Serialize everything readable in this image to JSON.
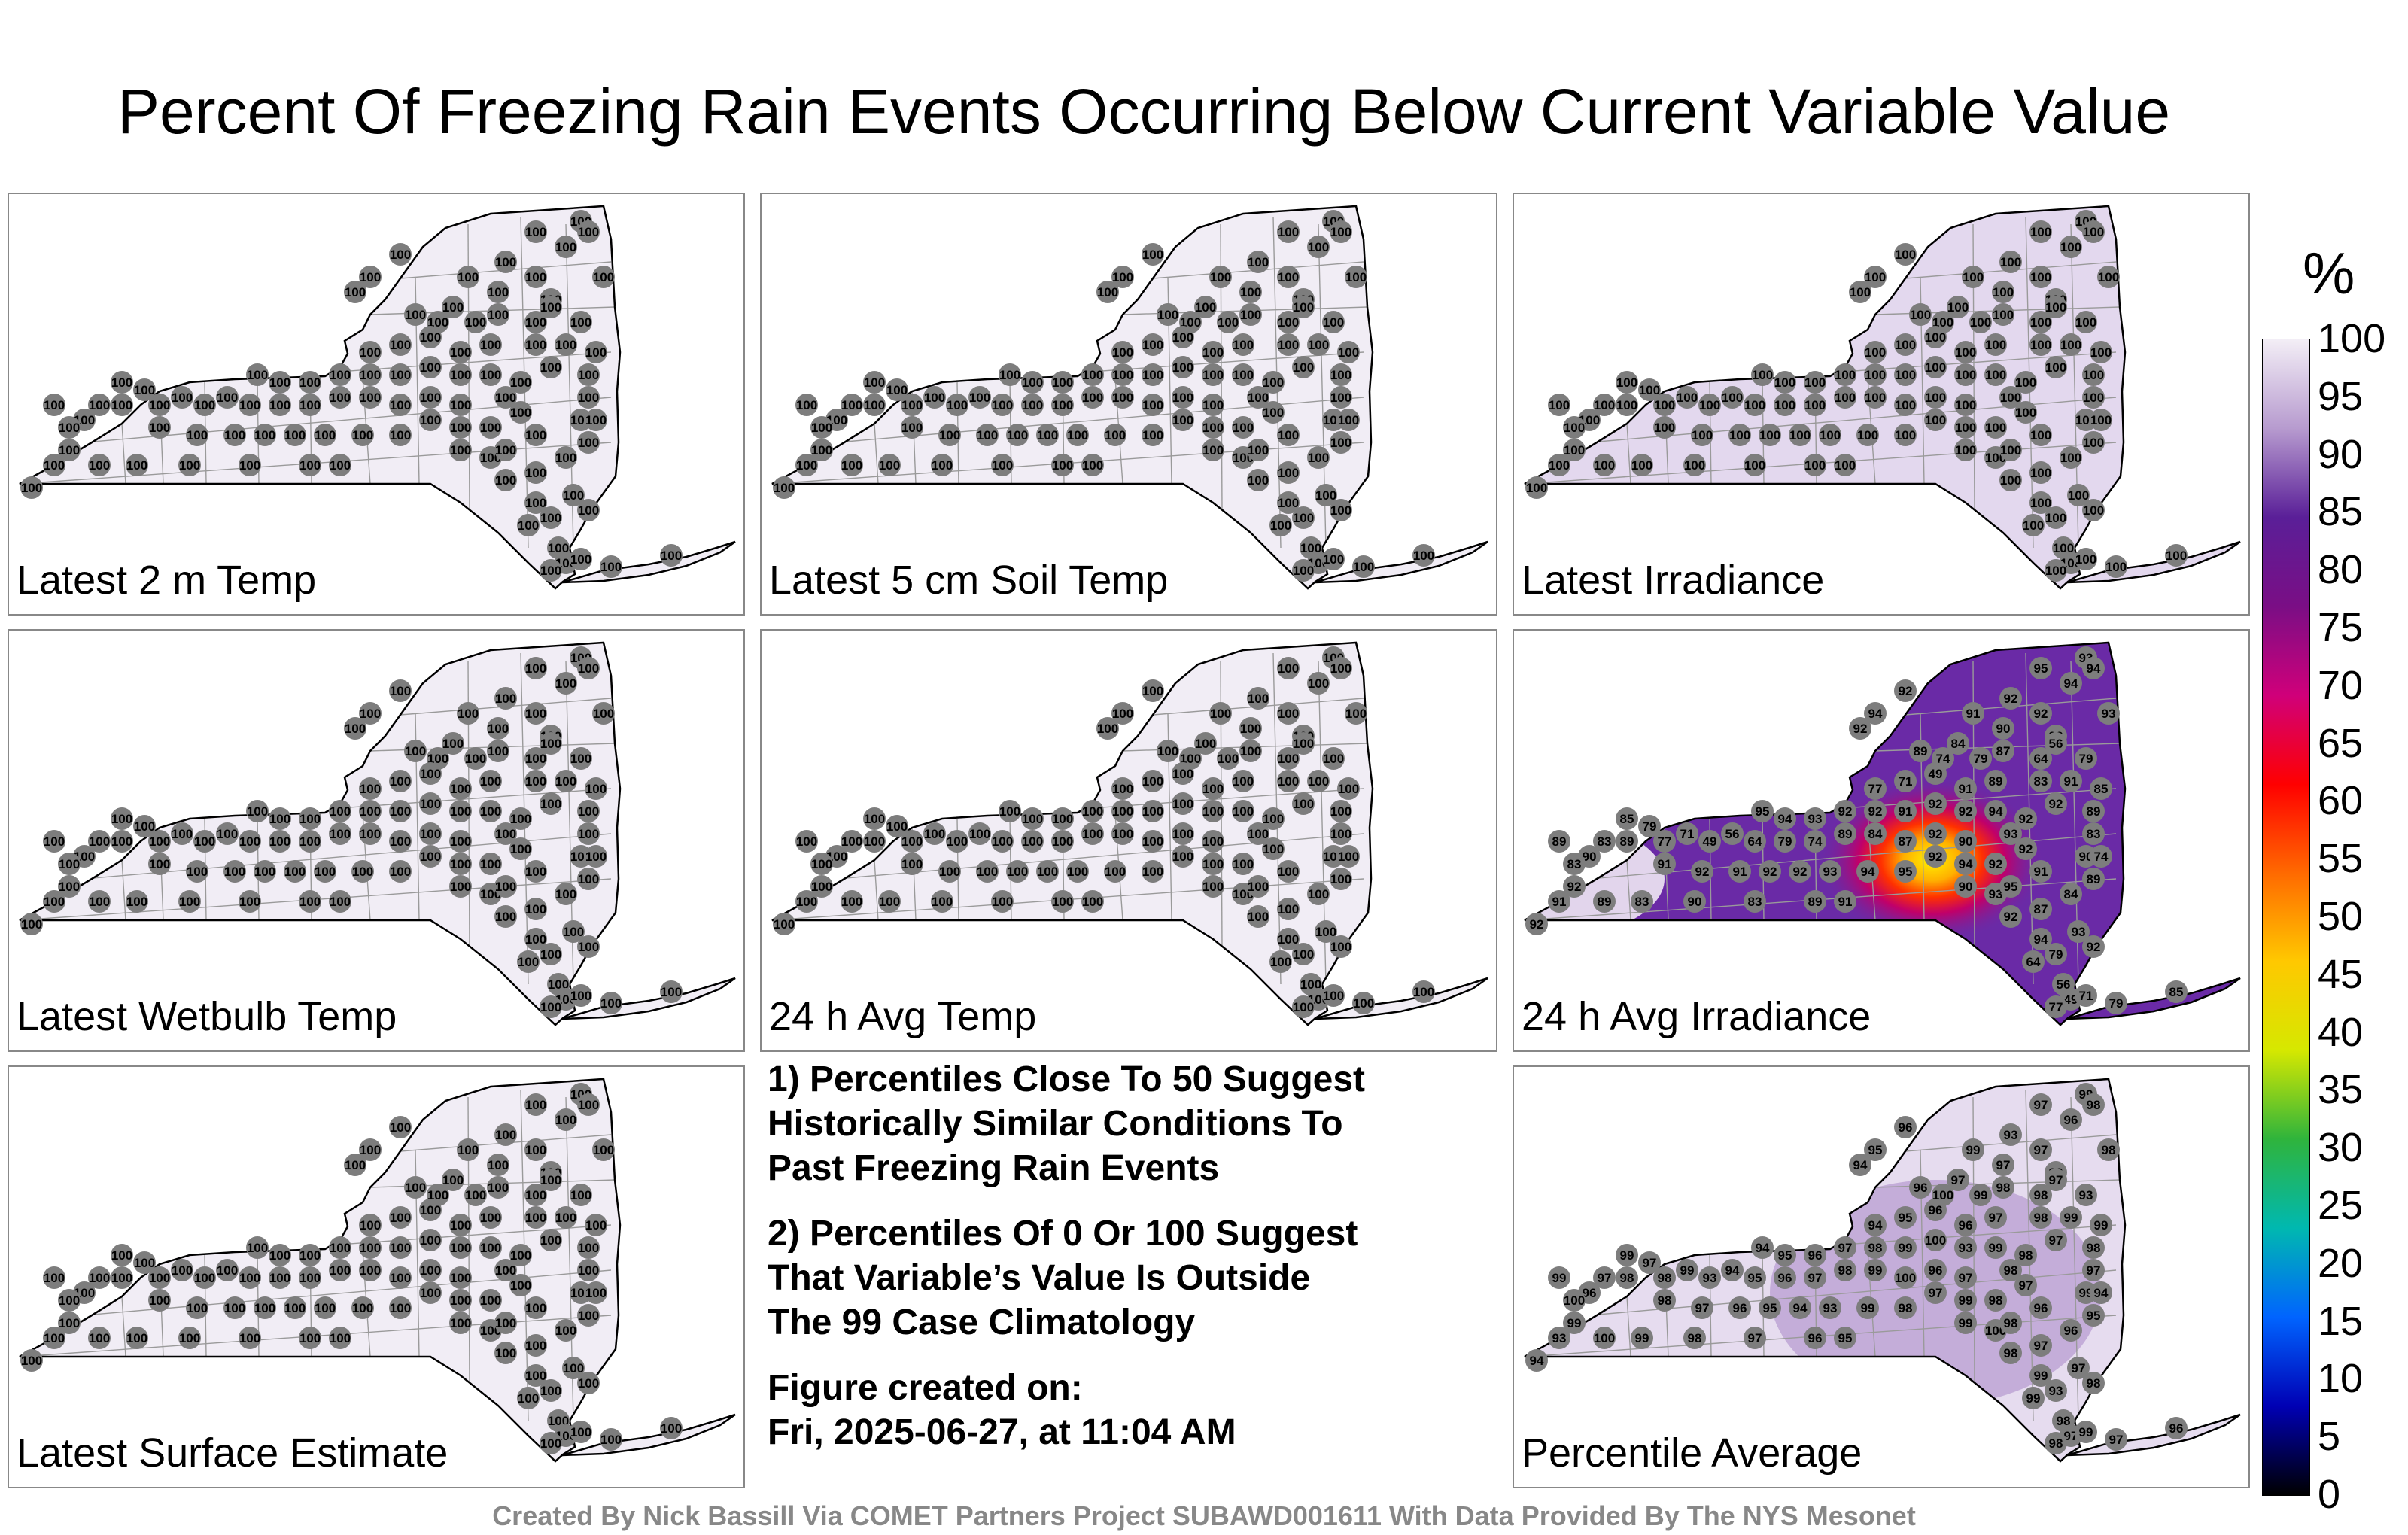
{
  "title": "Percent Of Freezing Rain Events Occurring Below Current Variable Value",
  "panels": [
    {
      "label": "Latest 2 m Temp",
      "field": "uniform",
      "value": "100"
    },
    {
      "label": "Latest 5 cm Soil Temp",
      "field": "uniform",
      "value": "100"
    },
    {
      "label": "Latest Irradiance",
      "field": "irradiance",
      "value": "100"
    },
    {
      "label": "Latest Wetbulb Temp",
      "field": "uniform",
      "value": "100"
    },
    {
      "label": "24 h Avg Temp",
      "field": "uniform",
      "value": "100"
    },
    {
      "label": "24 h Avg Irradiance",
      "field": "avg-irradiance",
      "value": "mixed"
    },
    {
      "label": "Latest Surface Estimate",
      "field": "uniform",
      "value": "100"
    },
    {
      "label": "Percentile Average",
      "field": "average",
      "value": "mixed"
    }
  ],
  "notes": {
    "note1": "1) Percentiles Close To 50 Suggest\nHistorically Similar Conditions To\nPast Freezing Rain Events",
    "note2": "2) Percentiles Of 0 Or 100 Suggest\nThat Variable’s Value Is Outside\nThe 99 Case Climatology",
    "created_label": "Figure created on:",
    "created_value": "Fri, 2025-06-27, at 11:04 AM"
  },
  "legend": {
    "title": "%",
    "ticks": [
      "100",
      "95",
      "90",
      "85",
      "80",
      "75",
      "70",
      "65",
      "60",
      "55",
      "50",
      "45",
      "40",
      "35",
      "30",
      "25",
      "20",
      "15",
      "10",
      "5",
      "0"
    ],
    "colors": [
      "#f3eef6",
      "#b79bcf",
      "#5a1f98",
      "#7a0e85",
      "#d0007a",
      "#ff0000",
      "#ff6a00",
      "#ffc800",
      "#d6e800",
      "#2fb43c",
      "#00b8b0",
      "#0064ff",
      "#0000b4",
      "#000000"
    ]
  },
  "avg_irradiance_values": [
    "93",
    "94",
    "95",
    "92",
    "94",
    "92",
    "92",
    "91",
    "93",
    "90",
    "92",
    "87",
    "84",
    "89",
    "74",
    "79",
    "64",
    "56",
    "49",
    "71",
    "77",
    "79",
    "85",
    "89",
    "83",
    "90",
    "83",
    "89",
    "91",
    "92",
    "91",
    "92",
    "92"
  ],
  "percentile_average_values": [
    "99",
    "98",
    "97",
    "96",
    "95",
    "94",
    "93",
    "99",
    "98",
    "97",
    "99",
    "98",
    "97",
    "96",
    "100"
  ],
  "footer": "Created By Nick Bassill Via COMET Partners Project SUBAWD001611 With Data Provided By The NYS Mesonet"
}
